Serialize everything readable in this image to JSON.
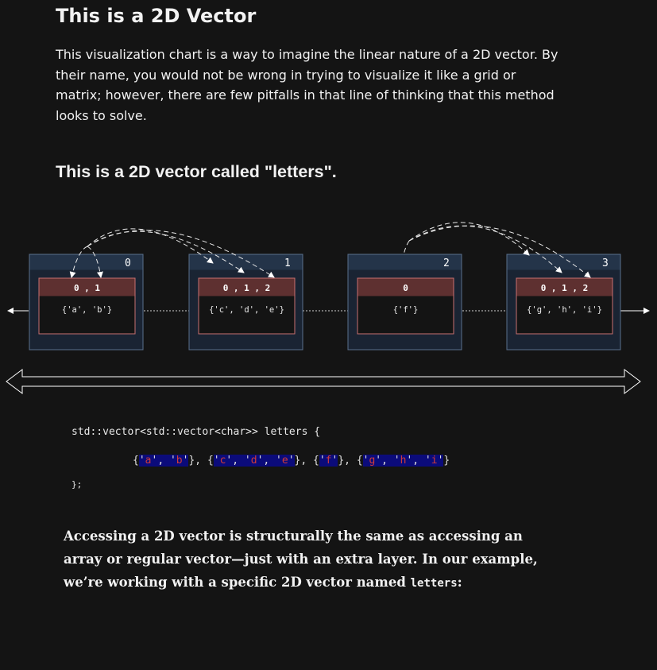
{
  "header": {
    "title": "This is a 2D Vector",
    "intro": "This visualization chart is a way to imagine the linear nature of a 2D vector. By their name, you would not be wrong in trying to visualize it like a grid or matrix; however, there are few pitfalls in that line of thinking that this method looks to solve."
  },
  "diagram": {
    "title": "This is a 2D vector called \"letters\".",
    "outer": [
      {
        "index": "0",
        "inner_index_label": "0 , 1",
        "contents": "{'a', 'b'}"
      },
      {
        "index": "1",
        "inner_index_label": "0 , 1 , 2",
        "contents": "{'c', 'd', 'e'}"
      },
      {
        "index": "2",
        "inner_index_label": "0",
        "contents": "{'f'}"
      },
      {
        "index": "3",
        "inner_index_label": "0 , 1 , 2",
        "contents": "{'g', 'h', 'i'}"
      }
    ],
    "colors": {
      "outer_fill": "#1a2433",
      "outer_header": "#243449",
      "outer_border": "#5a6f8c",
      "inner_fill": "#141414",
      "inner_header": "#5e3030",
      "inner_border": "#c87070"
    }
  },
  "code": {
    "open": "std::vector<std::vector<char>> letters {",
    "groups": [
      [
        "a",
        "b"
      ],
      [
        "c",
        "d",
        "e"
      ],
      [
        "f"
      ],
      [
        "g",
        "h",
        "i"
      ]
    ],
    "close": "};",
    "colors": {
      "highlight": "#0b0b7a",
      "char": "#d03a3a"
    }
  },
  "outro": {
    "text": "Accessing a 2D vector is structurally the same as accessing an array or regular vector—just with an extra layer. In our example, we’re working with a specific 2D vector named",
    "code": "letters",
    "suffix": ":"
  }
}
